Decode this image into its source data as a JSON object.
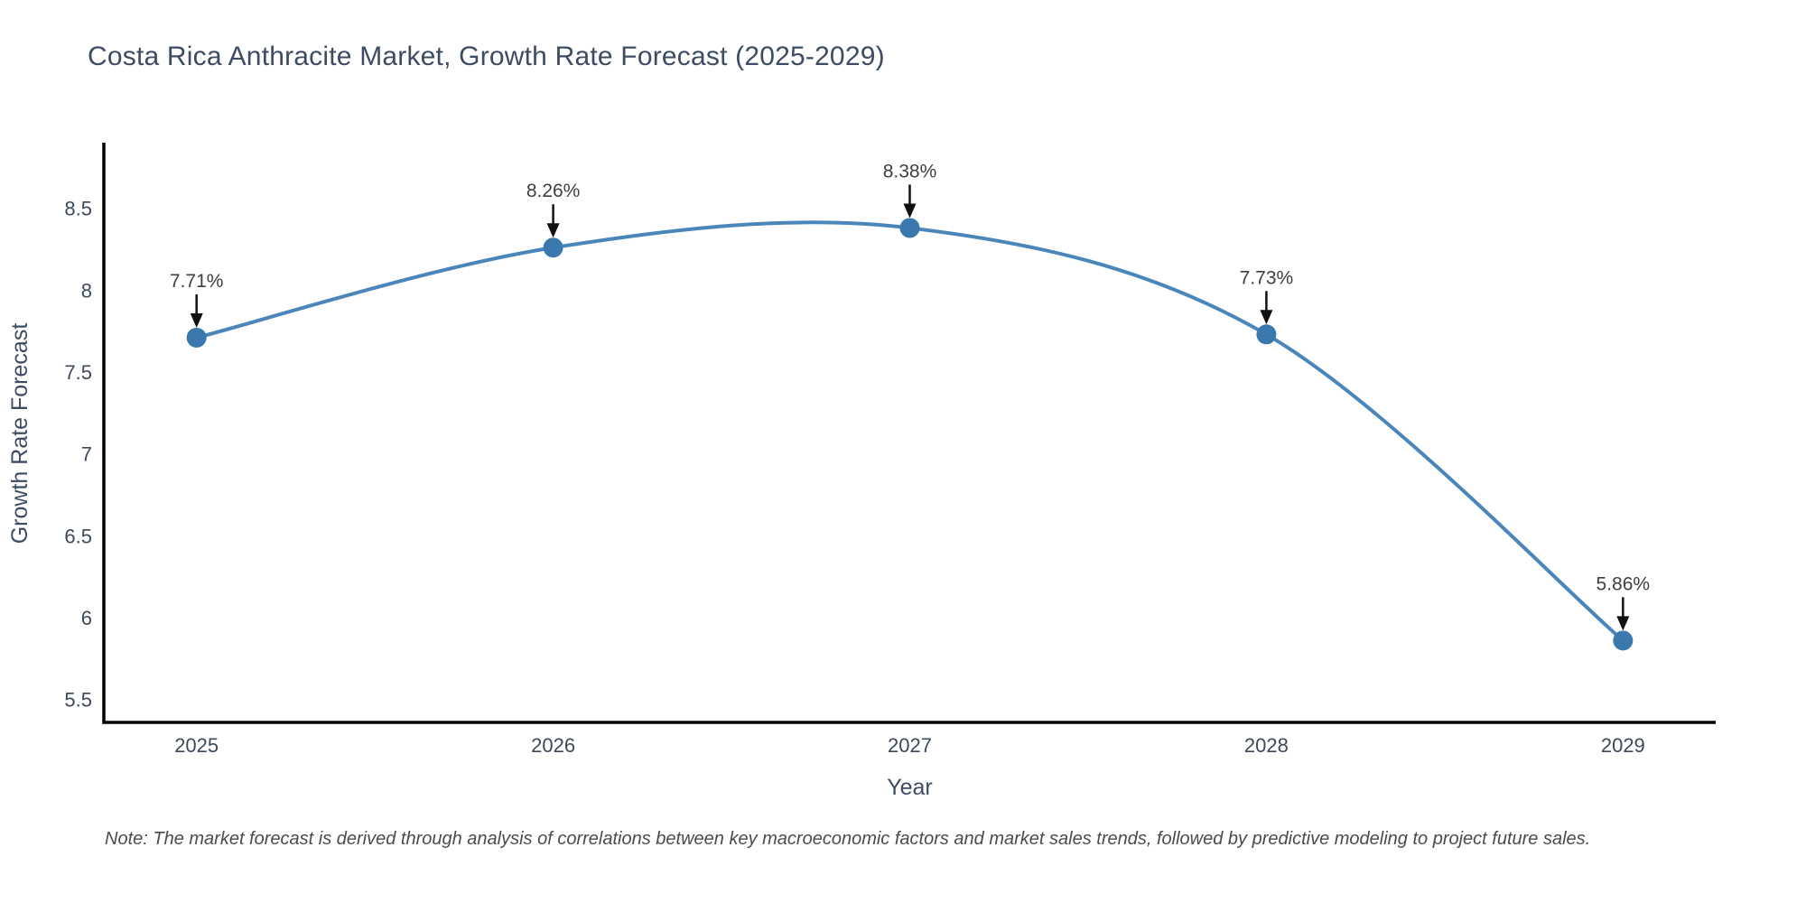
{
  "page": {
    "note": "Note: The market forecast is derived through analysis of correlations between key macroeconomic factors and market sales trends, followed by predictive modeling to project future sales."
  },
  "chart_data": {
    "type": "line",
    "title": "Costa Rica Anthracite Market, Growth Rate Forecast (2025-2029)",
    "xlabel": "Year",
    "ylabel": "Growth Rate Forecast",
    "x": [
      2025,
      2026,
      2027,
      2028,
      2029
    ],
    "series": [
      {
        "name": "Growth Rate Forecast",
        "values": [
          7.71,
          8.26,
          8.38,
          7.73,
          5.86
        ],
        "labels": [
          "7.71%",
          "8.26%",
          "8.38%",
          "7.73%",
          "5.86%"
        ]
      }
    ],
    "curve": "spline",
    "markers": true,
    "annotations": "percent labels with downward black arrows above each data point",
    "xticks": [
      2025,
      2026,
      2027,
      2028,
      2029
    ],
    "yticks": [
      5.5,
      6,
      6.5,
      7,
      7.5,
      8,
      8.5
    ],
    "xlim": [
      2024.74,
      2029.26
    ],
    "ylim": [
      5.36,
      8.89
    ],
    "grid": false,
    "legend": "none",
    "colors": {
      "line": "#4a86ba",
      "marker": "#3a78ad",
      "arrow": "#111111",
      "title_text": "#3e4c63",
      "axis_text": "#3d4a5c",
      "annotation_text": "#3f3f3f",
      "note_text": "#4b4b4b",
      "axis_line": "#000000"
    }
  }
}
